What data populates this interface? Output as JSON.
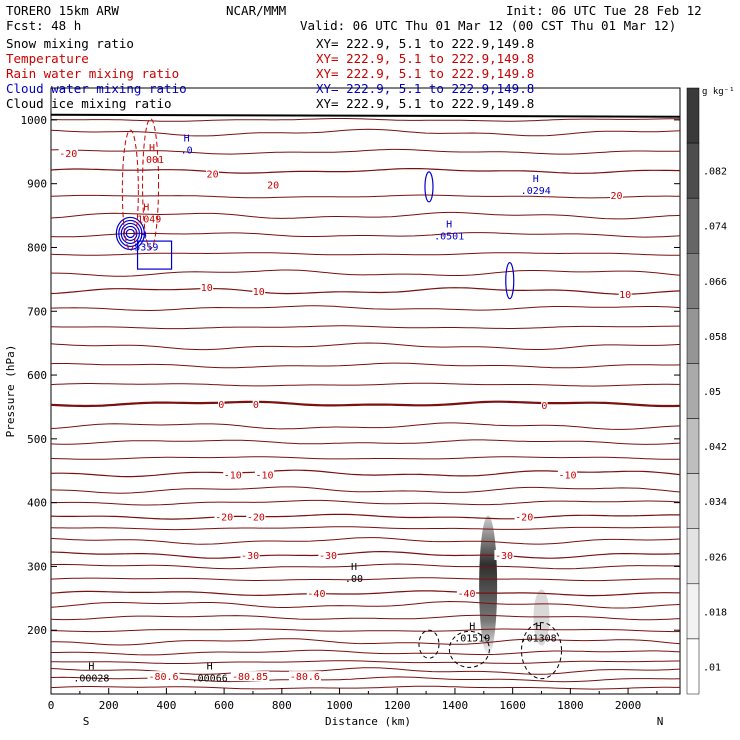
{
  "header": {
    "model": "TORERO  15km ARW",
    "forecast": "Fcst:   48 h",
    "center": "NCAR/MMM",
    "init": "Init: 06 UTC Tue 28 Feb 12",
    "valid": "Valid: 06 UTC Thu 01 Mar 12 (00 CST Thu 01 Mar 12)"
  },
  "legend": [
    {
      "label": "Snow mixing ratio",
      "xy": "XY= 222.9,  5.1 to 222.9,149.8",
      "color": "#000000"
    },
    {
      "label": "Temperature",
      "xy": "XY= 222.9,  5.1 to 222.9,149.8",
      "color": "#cc0000"
    },
    {
      "label": "Rain water mixing ratio",
      "xy": "XY= 222.9,  5.1 to 222.9,149.8",
      "color": "#cc0000"
    },
    {
      "label": "Cloud water mixing ratio",
      "xy": "XY= 222.9,  5.1 to 222.9,149.8",
      "color": "#0000cc"
    },
    {
      "label": "Cloud ice mixing ratio",
      "xy": "XY= 222.9,  5.1 to 222.9,149.8",
      "color": "#000000"
    }
  ],
  "chart_data": {
    "type": "contour_cross_section",
    "xlabel": "Distance (km)",
    "ylabel": "Pressure (hPa)",
    "xlim": [
      0,
      2180
    ],
    "ylim": [
      1050,
      100
    ],
    "x_ticks": [
      0,
      200,
      400,
      600,
      800,
      1000,
      1200,
      1400,
      1600,
      1800,
      2000
    ],
    "y_ticks": [
      200,
      300,
      400,
      500,
      600,
      700,
      800,
      900,
      1000
    ],
    "x_end_labels": {
      "left": "S",
      "right": "N"
    },
    "colorbar": {
      "unit": "g kg⁻¹",
      "levels": [
        ".01",
        ".018",
        ".026",
        ".034",
        ".042",
        ".05",
        ".058",
        ".066",
        ".074",
        ".082"
      ],
      "colors": [
        "#ffffff",
        "#f2f2f2",
        "#e3e3e3",
        "#d2d2d2",
        "#bebebe",
        "#aaaaaa",
        "#959595",
        "#7e7e7e",
        "#666666",
        "#4d4d4d",
        "#3a3a3a"
      ]
    },
    "temperature_contours": [
      {
        "value": -40,
        "label": "-40",
        "pressure": 258
      },
      {
        "value": -30,
        "label": "-30",
        "pressure": 318
      },
      {
        "value": -20,
        "label": "-20",
        "pressure": 378
      },
      {
        "value": -10,
        "label": "-10",
        "pressure": 446
      },
      {
        "value": 0,
        "label": "0",
        "pressure": 555
      },
      {
        "value": 10,
        "label": "10",
        "pressure": 732
      },
      {
        "value": 20,
        "label": "20",
        "pressure": 920
      }
    ],
    "contour_labels": [
      {
        "text": "-80.6",
        "x": 390,
        "p": 128,
        "color": "#cc0000"
      },
      {
        "text": "-80.85",
        "x": 690,
        "p": 128,
        "color": "#cc0000"
      },
      {
        "text": "-80.6",
        "x": 880,
        "p": 128,
        "color": "#cc0000"
      },
      {
        "text": "-40",
        "x": 920,
        "p": 258,
        "color": "#cc0000"
      },
      {
        "text": "-40",
        "x": 1440,
        "p": 258,
        "color": "#cc0000"
      },
      {
        "text": "-30",
        "x": 690,
        "p": 318,
        "color": "#cc0000"
      },
      {
        "text": "-30",
        "x": 960,
        "p": 318,
        "color": "#cc0000"
      },
      {
        "text": "-30",
        "x": 1570,
        "p": 318,
        "color": "#cc0000"
      },
      {
        "text": "-20",
        "x": 600,
        "p": 378,
        "color": "#cc0000"
      },
      {
        "text": "-20",
        "x": 710,
        "p": 378,
        "color": "#cc0000"
      },
      {
        "text": "-20",
        "x": 1640,
        "p": 378,
        "color": "#cc0000"
      },
      {
        "text": "-10",
        "x": 630,
        "p": 444,
        "color": "#cc0000"
      },
      {
        "text": "-10",
        "x": 740,
        "p": 444,
        "color": "#cc0000"
      },
      {
        "text": "-10",
        "x": 1790,
        "p": 444,
        "color": "#cc0000"
      },
      {
        "text": "0",
        "x": 590,
        "p": 555,
        "color": "#cc0000"
      },
      {
        "text": "0",
        "x": 710,
        "p": 555,
        "color": "#cc0000"
      },
      {
        "text": "0",
        "x": 1710,
        "p": 553,
        "color": "#cc0000"
      },
      {
        "text": "10",
        "x": 540,
        "p": 738,
        "color": "#cc0000"
      },
      {
        "text": "10",
        "x": 720,
        "p": 732,
        "color": "#cc0000"
      },
      {
        "text": "10",
        "x": 1990,
        "p": 727,
        "color": "#cc0000"
      },
      {
        "text": "20",
        "x": 560,
        "p": 916,
        "color": "#cc0000"
      },
      {
        "text": "20",
        "x": 770,
        "p": 899,
        "color": "#cc0000"
      },
      {
        "text": "20",
        "x": 1960,
        "p": 882,
        "color": "#cc0000"
      },
      {
        "text": "-20",
        "x": 60,
        "p": 948,
        "color": "#cc0000"
      }
    ],
    "max_markers": [
      {
        "h": "H",
        "value": ".00028",
        "x": 140,
        "p": 132,
        "color": "#000000"
      },
      {
        "h": "H",
        "value": ".00066",
        "x": 550,
        "p": 132,
        "color": "#000000"
      },
      {
        "h": "H",
        "value": ".00",
        "x": 1050,
        "p": 288,
        "color": "#000000"
      },
      {
        "h": "H",
        "value": ".01519",
        "x": 1460,
        "p": 195,
        "color": "#000000"
      },
      {
        "h": "H",
        "value": ".01308",
        "x": 1690,
        "p": 195,
        "color": "#000000"
      },
      {
        "h": "H",
        "value": ".5359",
        "x": 320,
        "p": 808,
        "color": "#0000cc"
      },
      {
        "h": "H",
        "value": ".1049",
        "x": 330,
        "p": 852,
        "color": "#cc0000"
      },
      {
        "h": "H",
        "value": ".001",
        "x": 350,
        "p": 945,
        "color": "#cc0000"
      },
      {
        "h": "H",
        "value": ".0",
        "x": 470,
        "p": 960,
        "color": "#0000cc"
      },
      {
        "h": "H",
        "value": ".0501",
        "x": 1380,
        "p": 825,
        "color": "#0000cc"
      },
      {
        "h": "H",
        "value": ".0294",
        "x": 1680,
        "p": 896,
        "color": "#0000cc"
      }
    ]
  }
}
